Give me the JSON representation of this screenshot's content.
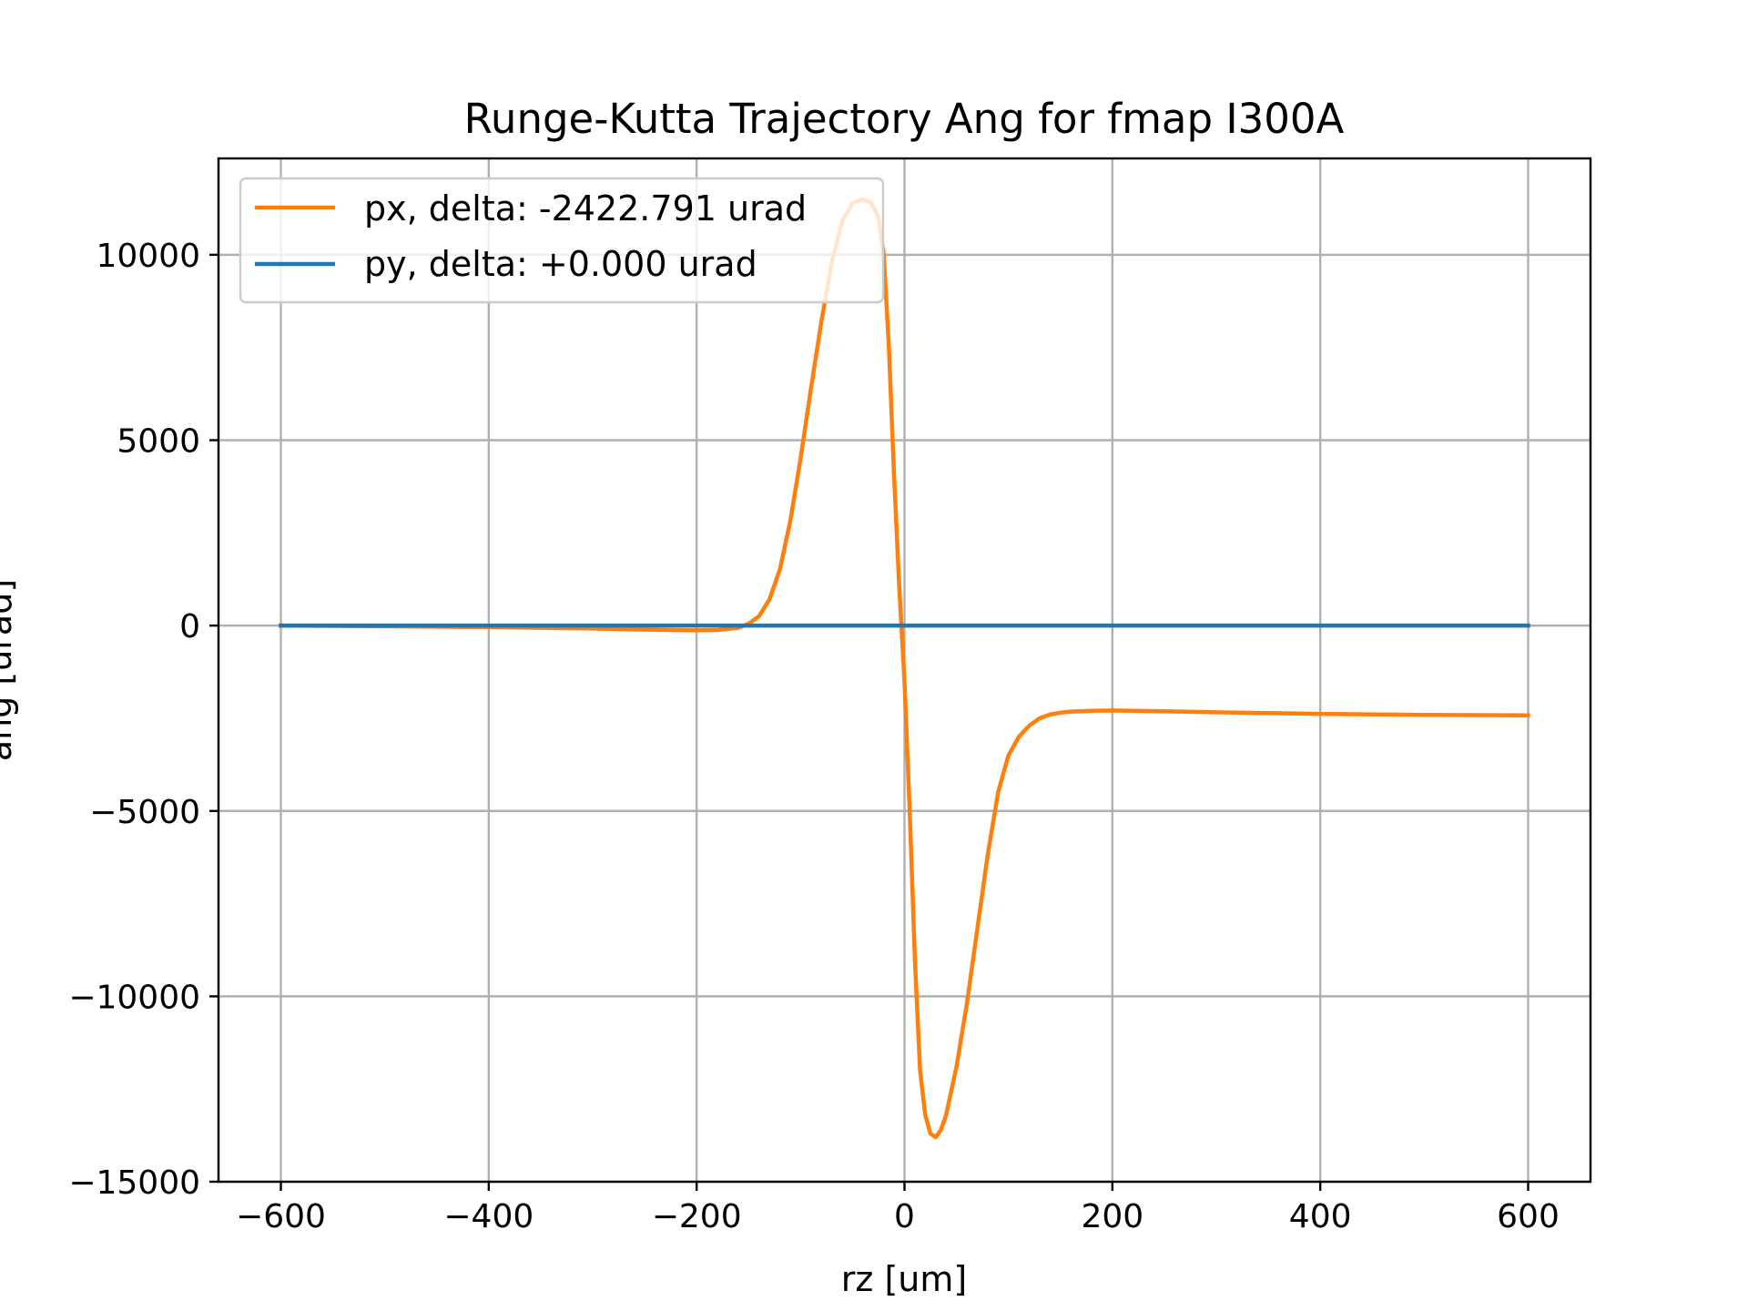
{
  "chart_data": {
    "type": "line",
    "title": "Runge-Kutta Trajectory Ang for fmap I300A",
    "xlabel": "rz [um]",
    "ylabel": "ang [urad]",
    "xlim": [
      -660,
      660
    ],
    "ylim": [
      -15000,
      12600
    ],
    "grid": true,
    "legend_position": "top-left",
    "xticks": [
      -600,
      -400,
      -200,
      0,
      200,
      400,
      600
    ],
    "xtick_labels": [
      "−600",
      "−400",
      "−200",
      "0",
      "200",
      "400",
      "600"
    ],
    "yticks": [
      -15000,
      -10000,
      -5000,
      0,
      5000,
      10000
    ],
    "ytick_labels": [
      "−15000",
      "−10000",
      "−5000",
      "0",
      "5000",
      "10000"
    ],
    "series": [
      {
        "name": "px, delta: -2422.791 urad",
        "color": "#ff7f0e",
        "x": [
          -600,
          -500,
          -400,
          -300,
          -250,
          -200,
          -180,
          -160,
          -150,
          -140,
          -130,
          -120,
          -110,
          -100,
          -90,
          -80,
          -70,
          -60,
          -50,
          -40,
          -32,
          -25,
          -20,
          -15,
          -10,
          -5,
          0,
          5,
          10,
          15,
          20,
          25,
          30,
          35,
          40,
          50,
          60,
          70,
          80,
          90,
          100,
          110,
          120,
          130,
          140,
          150,
          160,
          180,
          200,
          250,
          300,
          400,
          500,
          600
        ],
        "y": [
          0,
          -20,
          -40,
          -80,
          -110,
          -130,
          -120,
          -60,
          50,
          250,
          700,
          1500,
          2800,
          4500,
          6400,
          8200,
          9800,
          10900,
          11400,
          11500,
          11400,
          11000,
          10000,
          7500,
          4000,
          1000,
          -1500,
          -5000,
          -9000,
          -12000,
          -13200,
          -13700,
          -13800,
          -13600,
          -13200,
          -11900,
          -10200,
          -8200,
          -6200,
          -4500,
          -3500,
          -3000,
          -2700,
          -2500,
          -2400,
          -2350,
          -2320,
          -2300,
          -2290,
          -2310,
          -2340,
          -2380,
          -2410,
          -2420
        ]
      },
      {
        "name": "py, delta: +0.000 urad",
        "color": "#1f77b4",
        "x": [
          -600,
          600
        ],
        "y": [
          0,
          0
        ]
      }
    ]
  }
}
